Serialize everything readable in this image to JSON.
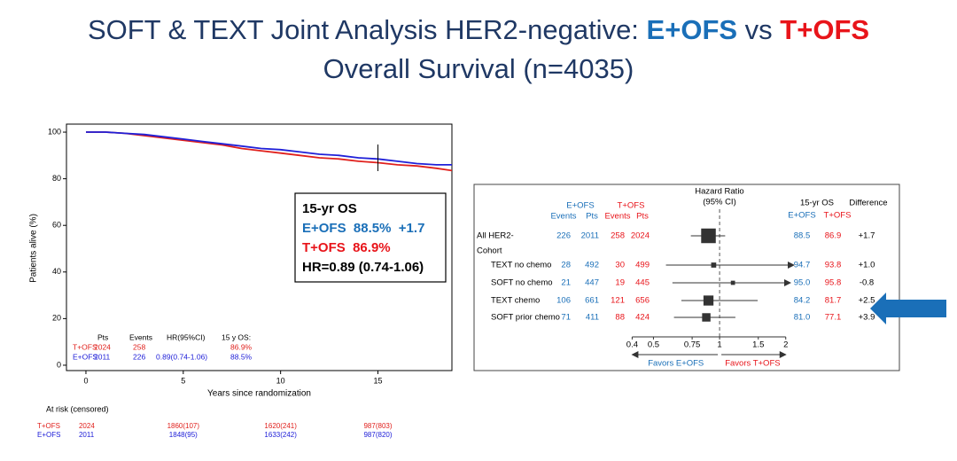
{
  "slide": {
    "title_parts": [
      {
        "text": "SOFT & TEXT Joint Analysis HER2-negative: ",
        "color": "#1f3864",
        "bold": false
      },
      {
        "text": "E+OFS",
        "color": "#1a6fb8",
        "bold": true
      },
      {
        "text": " vs ",
        "color": "#1f3864",
        "bold": false
      },
      {
        "text": "T+OFS",
        "color": "#e8141a",
        "bold": true
      }
    ],
    "subtitle": "Overall Survival (n=4035)"
  },
  "chart_data": [
    {
      "type": "line",
      "xlabel": "Years since randomization",
      "ylabel": "Patients alive (%)",
      "xlim": [
        -1,
        18.8
      ],
      "ylim": [
        -2.3,
        102.3
      ],
      "xticks": [
        0,
        5,
        10,
        15
      ],
      "yticks": [
        0,
        20,
        40,
        60,
        80,
        100
      ],
      "x": [
        0,
        1,
        2,
        3,
        4,
        5,
        6,
        7,
        8,
        9,
        10,
        11,
        12,
        13,
        14,
        15,
        16,
        17,
        18,
        18.8
      ],
      "series": [
        {
          "name": "T+OFS",
          "color": "#e0201c",
          "values": [
            100,
            100,
            99.5,
            98.5,
            97.5,
            96.5,
            95.5,
            94.5,
            93,
            92,
            91,
            90,
            89,
            88.5,
            87.5,
            86.9,
            86,
            85.5,
            84.5,
            83.5
          ]
        },
        {
          "name": "E+OFS",
          "color": "#2020d8",
          "values": [
            100,
            100,
            99.5,
            99,
            98,
            97,
            96,
            95,
            94,
            93,
            92.5,
            91.5,
            90.5,
            90,
            89,
            88.5,
            87.5,
            86.5,
            86,
            86
          ]
        }
      ],
      "summary": {
        "columns": [
          "Pts",
          "Events",
          "HR(95%CI)",
          "15 y OS:"
        ],
        "rows": [
          {
            "pts": 2024,
            "events": 258,
            "os": "86.9%"
          },
          {
            "pts": 2011,
            "events": 226,
            "hr": "0.89(0.74-1.06)",
            "os": "88.5%"
          }
        ]
      },
      "annotation": [
        {
          "text": "15-yr OS",
          "color": "#000000"
        },
        {
          "text": "E+OFS  88.5%  +1.7",
          "color": "#1a6fb8"
        },
        {
          "text": "T+OFS  86.9%",
          "color": "#e8141a"
        },
        {
          "text": "HR=0.89 (0.74-1.06)",
          "color": "#000000"
        }
      ],
      "risk_label": "At risk (censored)",
      "at_risk": [
        [
          2024,
          "1860(107)",
          "1620(241)",
          "987(803)"
        ],
        [
          2011,
          "1848(95)",
          "1633(242)",
          "987(820)"
        ]
      ]
    },
    {
      "type": "forest",
      "hr_title": "Hazard Ratio",
      "hr_subtitle": "(95% CI)",
      "groups": [
        {
          "name": "E+OFS",
          "color": "#1a6fb8"
        },
        {
          "name": "T+OFS",
          "color": "#e8141a"
        }
      ],
      "columns": [
        "Events",
        "Pts"
      ],
      "os_title": "15-yr OS",
      "diff_title": "Difference",
      "section": "Cohort",
      "rows": [
        {
          "label": "All HER2-",
          "e_events": 226,
          "e_pts": 2011,
          "t_events": 258,
          "t_pts": 2024,
          "hr": 0.89,
          "ci": [
            0.74,
            1.06
          ],
          "os_e": "88.5",
          "os_t": "86.9",
          "diff": "+1.7"
        },
        {
          "label": "TEXT no chemo",
          "e_events": 28,
          "e_pts": 492,
          "t_events": 30,
          "t_pts": 499,
          "hr": 0.94,
          "ci": [
            0.57,
            2.18
          ],
          "os_e": "94.7",
          "os_t": "93.8",
          "diff": "+1.0"
        },
        {
          "label": "SOFT no chemo",
          "e_events": 21,
          "e_pts": 447,
          "t_events": 19,
          "t_pts": 445,
          "hr": 1.15,
          "ci": [
            0.61,
            2.1
          ],
          "os_e": "95.0",
          "os_t": "95.8",
          "diff": "-0.8"
        },
        {
          "label": "TEXT chemo",
          "e_events": 106,
          "e_pts": 661,
          "t_events": 121,
          "t_pts": 656,
          "hr": 0.89,
          "ci": [
            0.67,
            1.49
          ],
          "os_e": "84.2",
          "os_t": "81.7",
          "diff": "+2.5"
        },
        {
          "label": "SOFT prior chemo",
          "e_events": 71,
          "e_pts": 411,
          "t_events": 88,
          "t_pts": 424,
          "hr": 0.87,
          "ci": [
            0.62,
            1.18
          ],
          "os_e": "81.0",
          "os_t": "77.1",
          "diff": "+3.9"
        }
      ],
      "log": true,
      "xlim": [
        0.37,
        2.2
      ],
      "xticks": [
        0.4,
        0.5,
        0.75,
        1,
        1.5,
        2
      ],
      "favors": [
        "Favors E+OFS",
        "Favors T+OFS"
      ]
    }
  ]
}
